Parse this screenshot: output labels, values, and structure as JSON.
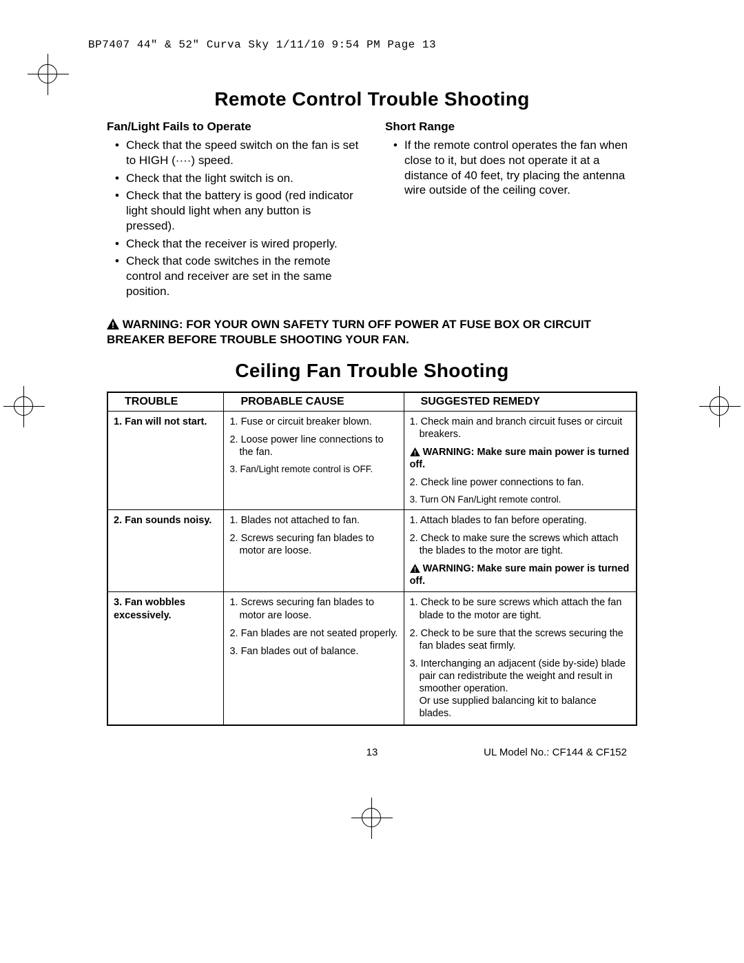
{
  "header": {
    "text": "BP7407 44\" &  52\" Curva Sky  1/11/10  9:54 PM  Page 13"
  },
  "section1": {
    "title": "Remote Control Trouble Shooting",
    "left": {
      "heading": "Fan/Light Fails to Operate",
      "items": [
        "Check that the speed switch on the fan is set to HIGH  (····)  speed.",
        "Check that the light switch is on.",
        "Check that the battery is good (red indicator light should light when any button is pressed).",
        "Check that the receiver is wired properly.",
        "Check that code switches in the remote control and receiver are set in the same position."
      ]
    },
    "right": {
      "heading": "Short Range",
      "items": [
        "If the remote control operates the fan when close to it, but does not operate it at a distance of 40 feet, try placing the antenna wire outside of the ceiling cover."
      ]
    }
  },
  "warning_main": {
    "label": "WARNING:",
    "text": "FOR YOUR OWN SAFETY TURN OFF POWER AT FUSE BOX OR CIRCUIT BREAKER BEFORE TROUBLE SHOOTING YOUR FAN."
  },
  "section2": {
    "title": "Ceiling Fan Trouble Shooting",
    "headers": {
      "trouble": "TROUBLE",
      "cause": "PROBABLE CAUSE",
      "remedy": "SUGGESTED REMEDY"
    },
    "rows": [
      {
        "trouble": "1. Fan will not start.",
        "cause": [
          "1. Fuse or circuit breaker blown.",
          "2. Loose power line connections to the fan.",
          "3. Fan/Light remote control is OFF."
        ],
        "remedy": [
          "1. Check main and branch circuit fuses or circuit breakers.",
          "__WARN__WARNING: Make sure main power is turned off.",
          "2. Check line power connections to fan.",
          "3. Turn ON Fan/Light remote control."
        ],
        "cause_tight_indices": [
          2
        ],
        "remedy_tight_indices": [
          3
        ]
      },
      {
        "trouble": "2. Fan sounds noisy.",
        "cause": [
          "1. Blades not attached to fan.",
          "2. Screws securing fan blades to motor are loose."
        ],
        "remedy": [
          "1. Attach blades to fan before operating.",
          "2. Check to make sure the screws which attach the blades to the motor are tight.",
          "__WARN__WARNING: Make sure main power is turned off."
        ]
      },
      {
        "trouble": "3. Fan wobbles excessively.",
        "cause": [
          "1. Screws securing fan blades to motor are loose.",
          "2. Fan blades are not seated properly.",
          "3. Fan blades out of balance."
        ],
        "remedy": [
          "1. Check to be sure screws which attach the fan blade to the motor are tight.",
          "2. Check to be sure that the screws securing the fan blades seat firmly.",
          "3. Interchanging an adjacent (side by-side) blade pair can redistribute the weight and result in smoother operation.\nOr use supplied balancing kit to balance blades."
        ]
      }
    ]
  },
  "footer": {
    "page": "13",
    "model": "UL Model No.: CF144 & CF152"
  }
}
